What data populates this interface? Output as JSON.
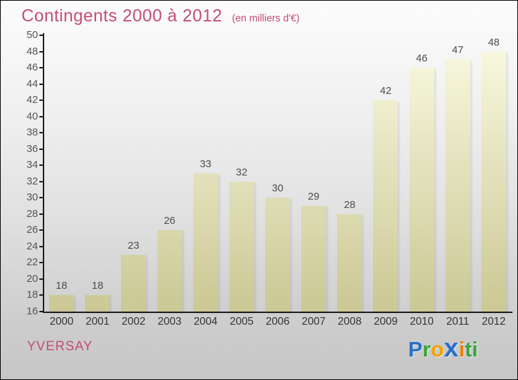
{
  "chart_data": {
    "type": "bar",
    "title": "Contingents 2000 à 2012",
    "subtitle": "(en milliers d'€)",
    "categories": [
      "2000",
      "2001",
      "2002",
      "2003",
      "2004",
      "2005",
      "2006",
      "2007",
      "2008",
      "2009",
      "2010",
      "2011",
      "2012"
    ],
    "values": [
      18,
      18,
      23,
      26,
      33,
      32,
      30,
      29,
      28,
      42,
      46,
      47,
      48
    ],
    "xlabel": "",
    "ylabel": "",
    "ylim": [
      16,
      50
    ],
    "ytick_step": 2,
    "grid": false,
    "legend": "none",
    "bar_color_top": "#fafae2",
    "bar_color_bottom": "#cbc894",
    "axis_color": "#1a1a1a",
    "tick_label_color": "#555555",
    "value_label_color": "#4d4d4d",
    "title_color": "#c44d75"
  },
  "footer": {
    "location": "YVERSAY",
    "logo_text": "Proxiti",
    "logo_letters": [
      {
        "ch": "P",
        "color": "#2a6fc9",
        "big": false
      },
      {
        "ch": "r",
        "color": "#3aa53a",
        "big": false
      },
      {
        "ch": "o",
        "color": "#f5a000",
        "big": false
      },
      {
        "ch": "x",
        "color": "#2a6fc9",
        "big": true
      },
      {
        "ch": "i",
        "color": "#f07d00",
        "big": false
      },
      {
        "ch": "t",
        "color": "#3aa53a",
        "big": false
      },
      {
        "ch": "i",
        "color": "#3aa53a",
        "big": false
      }
    ]
  }
}
